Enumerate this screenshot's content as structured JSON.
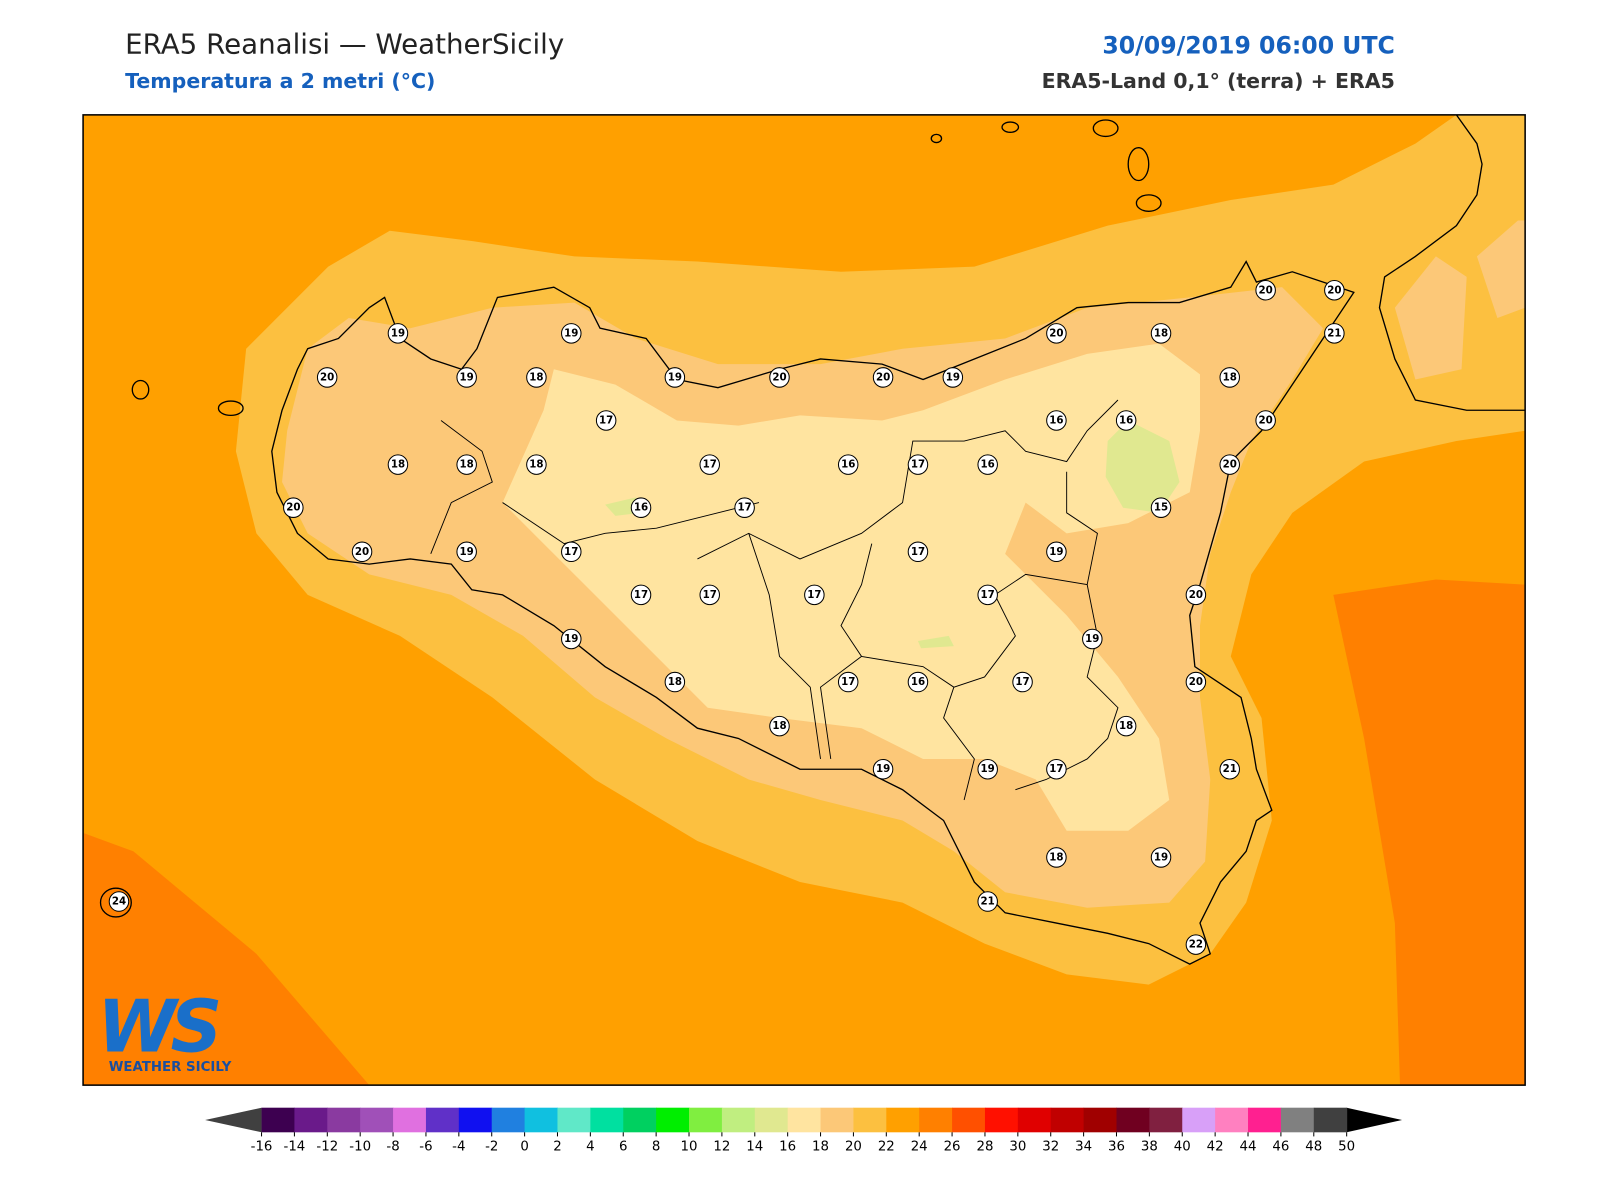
{
  "header": {
    "title": "ERA5 Reanalisi — WeatherSicily",
    "subtitle": "Temperatura a 2 metri (°C)",
    "datetime": "30/09/2019 06:00 UTC",
    "source": "ERA5-Land 0,1° (terra) + ERA5"
  },
  "stations": [
    19,
    19,
    20,
    19,
    18,
    19,
    20,
    20,
    19,
    20,
    18,
    20,
    20,
    21,
    18,
    20,
    17,
    16,
    16,
    18,
    18,
    18,
    17,
    16,
    17,
    16,
    20,
    20,
    16,
    17,
    15,
    20,
    19,
    17,
    17,
    19,
    17,
    17,
    17,
    17,
    20,
    19,
    19,
    18,
    17,
    16,
    17,
    20,
    18,
    18,
    19,
    19,
    17,
    21,
    18,
    19,
    21,
    22,
    24
  ],
  "logo": {
    "text": "WS",
    "caption": "WEATHER SICILY"
  },
  "colorbar": {
    "ticks": [
      -16,
      -14,
      -12,
      -10,
      -8,
      -6,
      -4,
      -2,
      0,
      2,
      4,
      6,
      8,
      10,
      12,
      14,
      16,
      18,
      20,
      22,
      24,
      26,
      28,
      30,
      32,
      34,
      36,
      38,
      40,
      42,
      44,
      46,
      48,
      50
    ],
    "colors": [
      "#3d0050",
      "#6a1a8a",
      "#8a3aa0",
      "#a050b8",
      "#e070e0",
      "#6030c8",
      "#1010f0",
      "#2080e0",
      "#10c0e0",
      "#60e8c8",
      "#00e0a0",
      "#00d060",
      "#00ee00",
      "#80ee40",
      "#c0ee80",
      "#e0e890",
      "#ffe4a0",
      "#fcc878",
      "#fcc040",
      "#ffa000",
      "#ff8000",
      "#ff5000",
      "#ff1000",
      "#e00000",
      "#c00000",
      "#a00000",
      "#700020",
      "#802040",
      "#d8a0f8",
      "#ff80c0",
      "#ff2090",
      "#808080",
      "#404040"
    ],
    "under": "#404040",
    "over": "#000000"
  }
}
